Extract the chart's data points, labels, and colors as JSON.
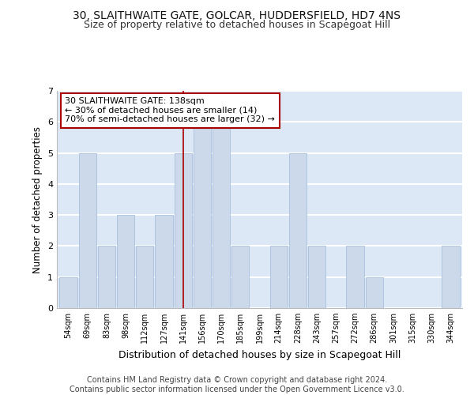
{
  "title1": "30, SLAITHWAITE GATE, GOLCAR, HUDDERSFIELD, HD7 4NS",
  "title2": "Size of property relative to detached houses in Scapegoat Hill",
  "xlabel": "Distribution of detached houses by size in Scapegoat Hill",
  "ylabel": "Number of detached properties",
  "footer1": "Contains HM Land Registry data © Crown copyright and database right 2024.",
  "footer2": "Contains public sector information licensed under the Open Government Licence v3.0.",
  "bin_labels": [
    "54sqm",
    "69sqm",
    "83sqm",
    "98sqm",
    "112sqm",
    "127sqm",
    "141sqm",
    "156sqm",
    "170sqm",
    "185sqm",
    "199sqm",
    "214sqm",
    "228sqm",
    "243sqm",
    "257sqm",
    "272sqm",
    "286sqm",
    "301sqm",
    "315sqm",
    "330sqm",
    "344sqm"
  ],
  "bar_heights": [
    1,
    5,
    2,
    3,
    2,
    3,
    5,
    6,
    6,
    2,
    0,
    2,
    5,
    2,
    0,
    2,
    1,
    0,
    0,
    0,
    2
  ],
  "bar_color": "#ccd9ea",
  "bar_edge_color": "#a0b8d8",
  "vline_x_index": 6,
  "vline_color": "#aa0000",
  "annotation_text": "30 SLAITHWAITE GATE: 138sqm\n← 30% of detached houses are smaller (14)\n70% of semi-detached houses are larger (32) →",
  "annotation_box_color": "white",
  "annotation_box_edge_color": "#aa0000",
  "ylim": [
    0,
    7
  ],
  "yticks": [
    0,
    1,
    2,
    3,
    4,
    5,
    6,
    7
  ],
  "background_color": "#ffffff",
  "plot_bg_color": "#dce8f5",
  "grid_color": "#ffffff",
  "title1_fontsize": 10,
  "title2_fontsize": 9,
  "xlabel_fontsize": 9,
  "ylabel_fontsize": 8.5,
  "footer_fontsize": 7
}
